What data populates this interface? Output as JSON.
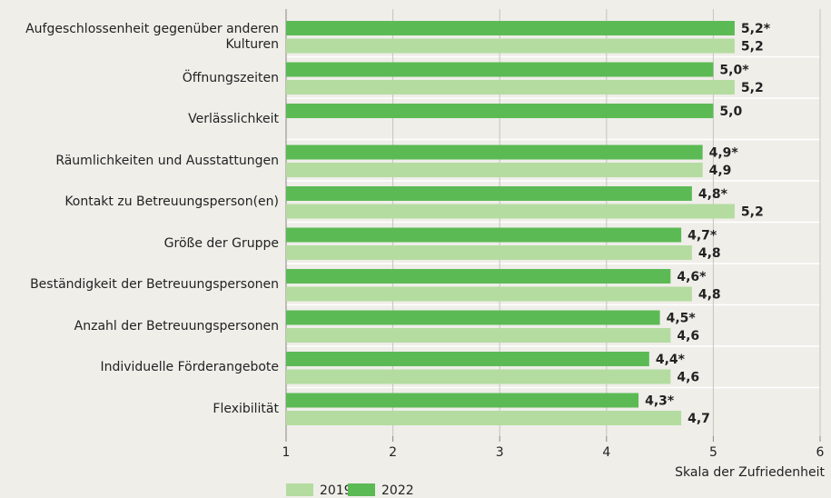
{
  "chart_data": {
    "type": "bar",
    "orientation": "horizontal",
    "categories": [
      "Aufgeschlossenheit gegenüber anderen Kulturen",
      "Öffnungszeiten",
      "Verlässlichkeit",
      "Räumlichkeiten und Ausstattungen",
      "Kontakt zu Betreuungsperson(en)",
      "Größe der Gruppe",
      "Beständigkeit der Betreuungspersonen",
      "Anzahl der Betreuungspersonen",
      "Individuelle Förderangebote",
      "Flexibilität"
    ],
    "series": [
      {
        "name": "2022",
        "color": "#5cba55",
        "values": [
          5.2,
          5.0,
          5.0,
          4.9,
          4.8,
          4.7,
          4.6,
          4.5,
          4.4,
          4.3
        ],
        "value_labels": [
          "5,2*",
          "5,0*",
          "5,0",
          "4,9*",
          "4,8*",
          "4,7*",
          "4,6*",
          "4,5*",
          "4,4*",
          "4,3*"
        ]
      },
      {
        "name": "2019",
        "color": "#b4dca0",
        "values": [
          5.2,
          5.2,
          null,
          4.9,
          5.2,
          4.8,
          4.8,
          4.6,
          4.6,
          4.7
        ],
        "value_labels": [
          "5,2",
          "5,2",
          null,
          "4,9",
          "5,2",
          "4,8",
          "4,8",
          "4,6",
          "4,6",
          "4,7"
        ]
      }
    ],
    "xlim": [
      1,
      6
    ],
    "xticks": [
      1,
      2,
      3,
      4,
      5,
      6
    ],
    "xlabel": "Skala der Zufriedenheit",
    "grid": true,
    "legend": "bottom"
  }
}
